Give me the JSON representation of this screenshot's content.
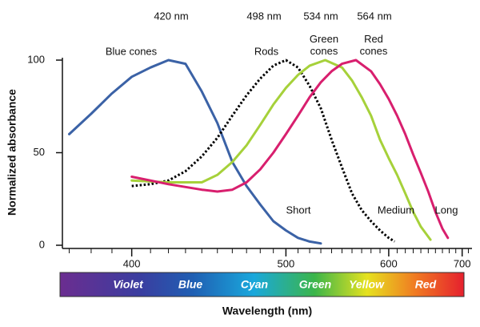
{
  "chart_data": {
    "type": "line",
    "xlabel": "Wavelength (nm)",
    "ylabel": "Normalized absorbance",
    "xscale": "reciprocal",
    "xlim": [
      367,
      716
    ],
    "xticks": [
      400,
      500,
      600,
      700
    ],
    "xminorticks": [
      370,
      380,
      390,
      410,
      420,
      430,
      440,
      450,
      460,
      470,
      480,
      490,
      510,
      520,
      530,
      540,
      550,
      560,
      570,
      580,
      590,
      610,
      620,
      630,
      640,
      650,
      660,
      670,
      680,
      690,
      710
    ],
    "ylim": [
      0,
      100
    ],
    "yticks": [
      0,
      50,
      100
    ],
    "series": [
      {
        "name": "Blue cones",
        "color": "#3b62a6",
        "x": [
          370,
          380,
          390,
          400,
          410,
          420,
          430,
          440,
          450,
          460,
          470,
          480,
          490,
          500,
          510,
          520,
          530
        ],
        "values": [
          60,
          71,
          82,
          91,
          96,
          100,
          98,
          83,
          66,
          45,
          32,
          22,
          13,
          8,
          4,
          2,
          1
        ]
      },
      {
        "name": "Rods",
        "color": "#000000",
        "dashed": true,
        "x": [
          400,
          410,
          420,
          430,
          440,
          450,
          460,
          470,
          480,
          490,
          500,
          510,
          520,
          530,
          540,
          550,
          560,
          570,
          580,
          590,
          600,
          607
        ],
        "values": [
          32,
          33,
          35,
          40,
          48,
          58,
          70,
          81,
          90,
          97,
          100,
          96,
          86,
          74,
          57,
          42,
          28,
          19,
          13,
          8,
          4,
          2
        ]
      },
      {
        "name": "Green cones",
        "color": "#a6d13a",
        "x": [
          400,
          420,
          440,
          450,
          460,
          470,
          480,
          490,
          500,
          510,
          520,
          534,
          550,
          560,
          570,
          580,
          590,
          600,
          610,
          620,
          630,
          640,
          653
        ],
        "values": [
          35,
          34,
          34,
          38,
          45,
          54,
          65,
          76,
          85,
          92,
          97,
          100,
          96,
          89,
          80,
          70,
          57,
          47,
          38,
          28,
          18,
          10,
          3
        ]
      },
      {
        "name": "Red cones",
        "color": "#d81f6e",
        "x": [
          400,
          420,
          440,
          450,
          460,
          470,
          480,
          490,
          500,
          510,
          520,
          530,
          540,
          550,
          564,
          580,
          590,
          600,
          610,
          620,
          630,
          640,
          650,
          660,
          670,
          678
        ],
        "values": [
          37,
          33,
          30,
          29,
          30,
          34,
          41,
          50,
          60,
          70,
          80,
          88,
          94,
          98,
          100,
          94,
          87,
          79,
          70,
          60,
          49,
          39,
          29,
          18,
          9,
          4
        ]
      }
    ],
    "peak_labels": [
      "420 nm",
      "498 nm",
      "534 nm",
      "564 nm"
    ],
    "curve_labels": [
      "Short",
      "Medium",
      "Long"
    ],
    "spectrum_labels": [
      "Violet",
      "Blue",
      "Cyan",
      "Green",
      "Yellow",
      "Red"
    ]
  }
}
